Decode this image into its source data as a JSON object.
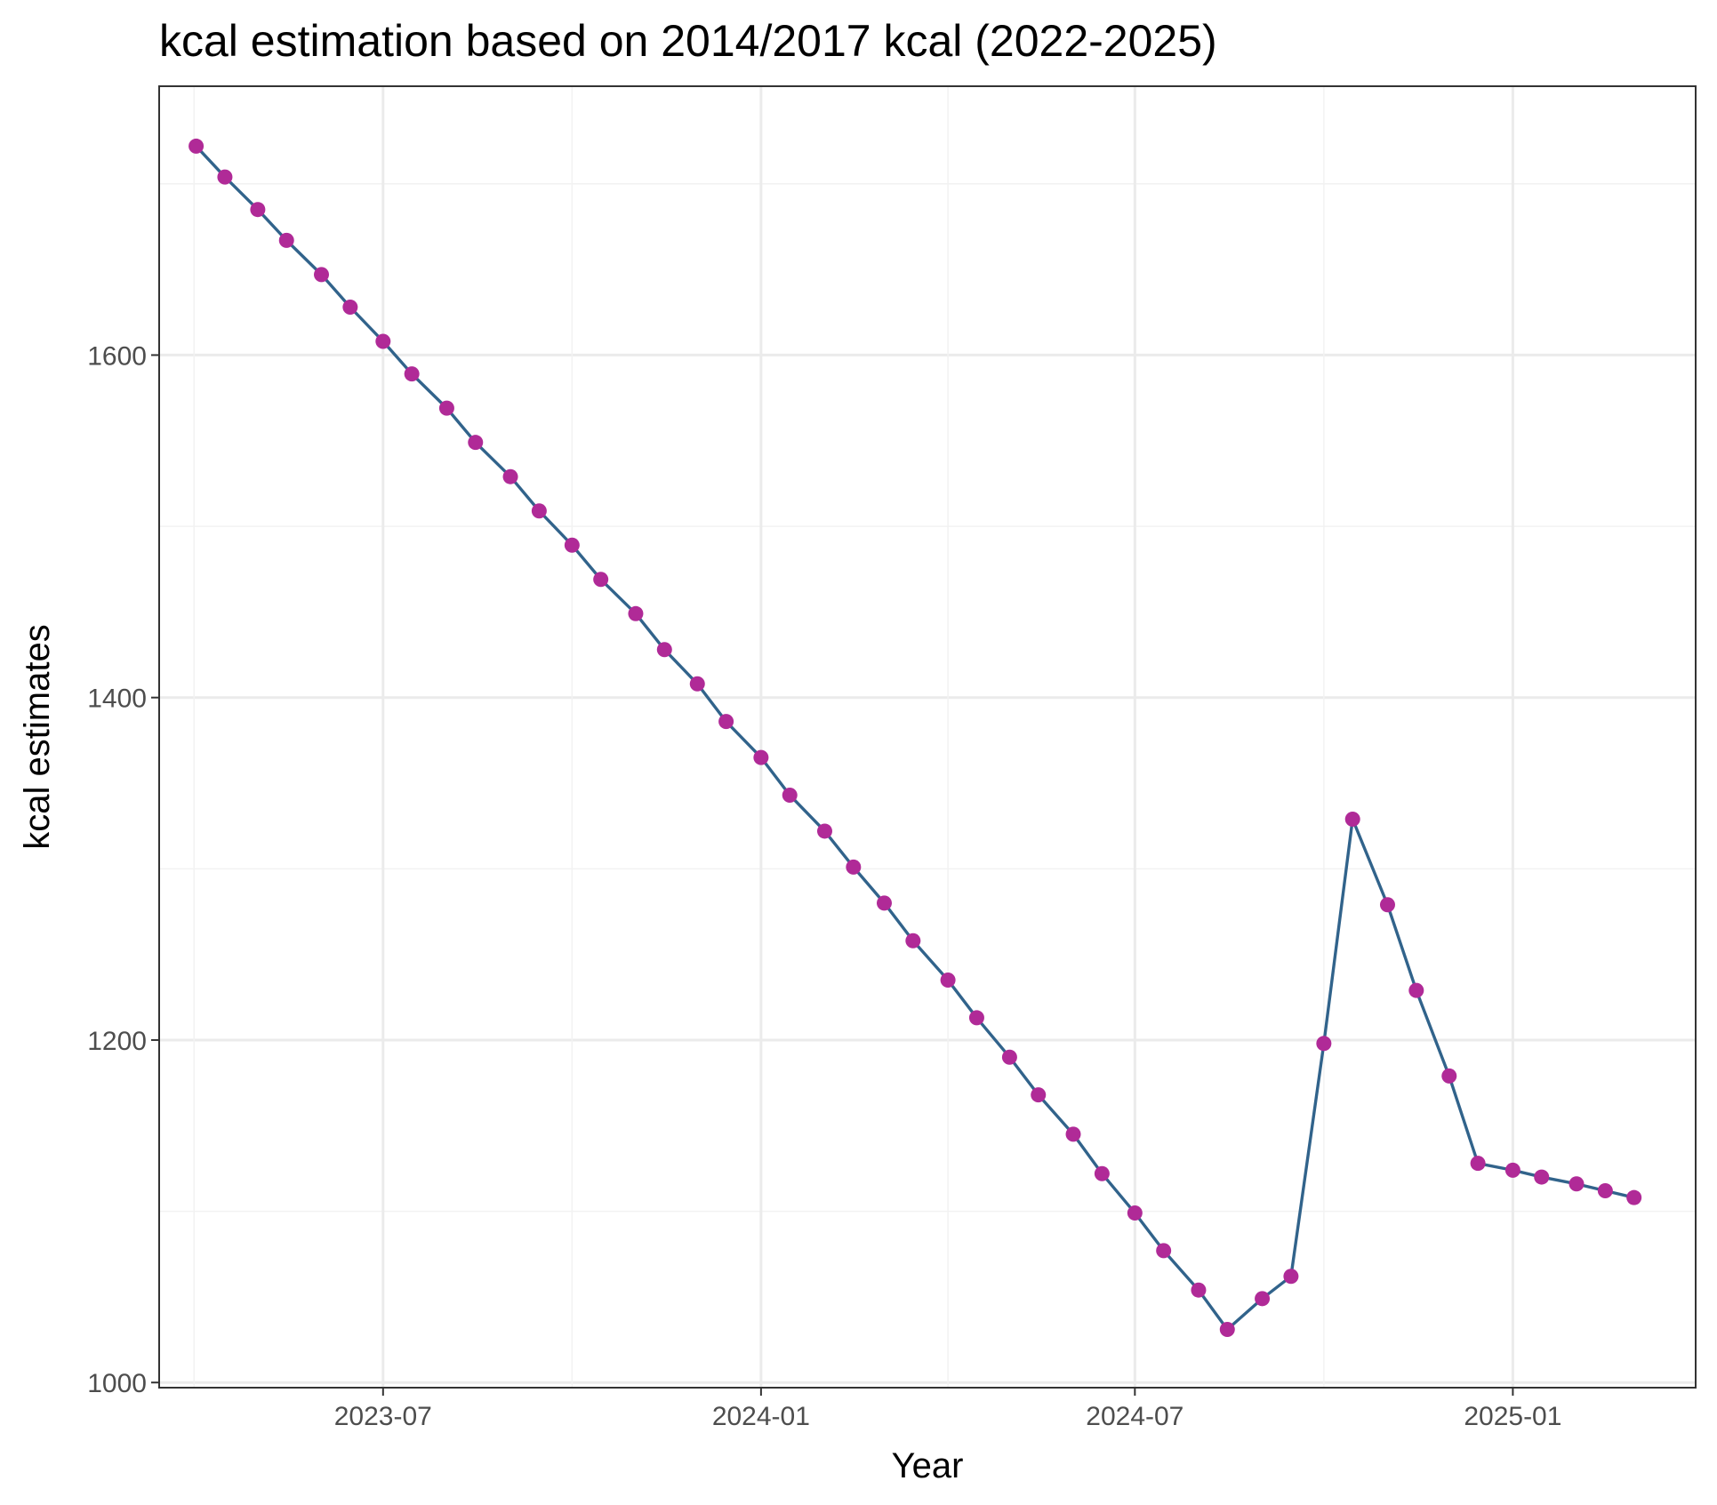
{
  "chart_data": {
    "type": "line",
    "title": "kcal estimation based on 2014/2017 kcal (2022-2025)",
    "xlabel": "Year",
    "ylabel": "kcal estimates",
    "x_ticks": [
      "2023-07",
      "2024-01",
      "2024-07",
      "2025-01"
    ],
    "y_ticks": [
      1000,
      1200,
      1400,
      1600
    ],
    "xlim": [
      "2023-03-14",
      "2025-03-31"
    ],
    "ylim": [
      997,
      1757
    ],
    "grid": true,
    "legend": "none",
    "line_color": "#31638b",
    "point_color": "#b02a97",
    "series": [
      {
        "x": [
          "2023-04-01",
          "2023-04-15",
          "2023-05-01",
          "2023-05-15",
          "2023-06-01",
          "2023-06-15",
          "2023-07-01",
          "2023-07-15",
          "2023-08-01",
          "2023-08-15",
          "2023-09-01",
          "2023-09-15",
          "2023-10-01",
          "2023-10-15",
          "2023-11-01",
          "2023-11-15",
          "2023-12-01",
          "2023-12-15",
          "2024-01-01",
          "2024-01-15",
          "2024-02-01",
          "2024-02-15",
          "2024-03-01",
          "2024-03-15",
          "2024-04-01",
          "2024-04-15",
          "2024-05-01",
          "2024-05-15",
          "2024-06-01",
          "2024-06-15",
          "2024-07-01",
          "2024-07-15",
          "2024-08-01",
          "2024-08-15",
          "2024-09-01",
          "2024-09-15",
          "2024-10-01",
          "2024-10-15",
          "2024-11-01",
          "2024-11-15",
          "2024-12-01",
          "2024-12-15",
          "2025-01-01",
          "2025-01-15",
          "2025-02-01",
          "2025-02-15",
          "2025-03-01"
        ],
        "values": [
          1722,
          1704,
          1685,
          1667,
          1647,
          1628,
          1608,
          1589,
          1569,
          1549,
          1529,
          1509,
          1489,
          1469,
          1449,
          1428,
          1408,
          1386,
          1365,
          1343,
          1322,
          1301,
          1280,
          1258,
          1235,
          1213,
          1190,
          1168,
          1145,
          1122,
          1099,
          1077,
          1054,
          1031,
          1049,
          1062,
          1198,
          1329,
          1279,
          1229,
          1179,
          1128,
          1124,
          1120,
          1116,
          1112,
          1108
        ]
      }
    ]
  }
}
